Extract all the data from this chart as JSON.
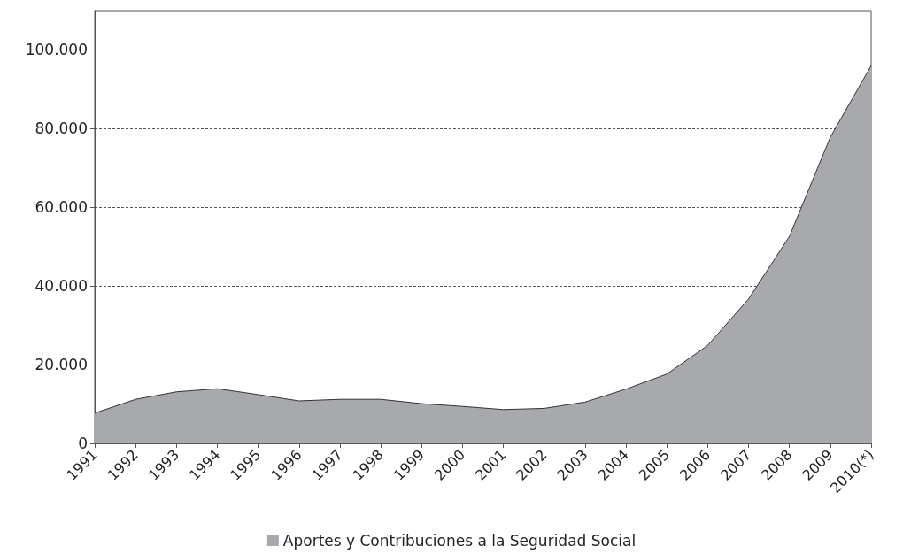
{
  "chart_data": {
    "type": "area",
    "categories": [
      "1991",
      "1992",
      "1993",
      "1994",
      "1995",
      "1996",
      "1997",
      "1998",
      "1999",
      "2000",
      "2001",
      "2002",
      "2003",
      "2004",
      "2005",
      "2006",
      "2007",
      "2008",
      "2009",
      "2010(*)"
    ],
    "series": [
      {
        "name": "Aportes y Contribuciones a la Seguridad Social",
        "color": "#a8a9ad",
        "values": [
          7700,
          11200,
          13100,
          13900,
          12400,
          10800,
          11200,
          11200,
          10100,
          9400,
          8600,
          8900,
          10500,
          13800,
          17600,
          24900,
          36700,
          52600,
          77800,
          96000
        ]
      }
    ],
    "ylim": [
      0,
      110000
    ],
    "yticks": [
      0,
      {
        "value": 20000,
        "label": "20.000"
      },
      {
        "value": 40000,
        "label": "40.000"
      },
      {
        "value": 60000,
        "label": "60.000"
      },
      {
        "value": 80000,
        "label": "80.000"
      },
      {
        "value": 100000,
        "label": "100.000"
      }
    ],
    "grid": "y",
    "legend": "bottom",
    "marker": "none"
  }
}
